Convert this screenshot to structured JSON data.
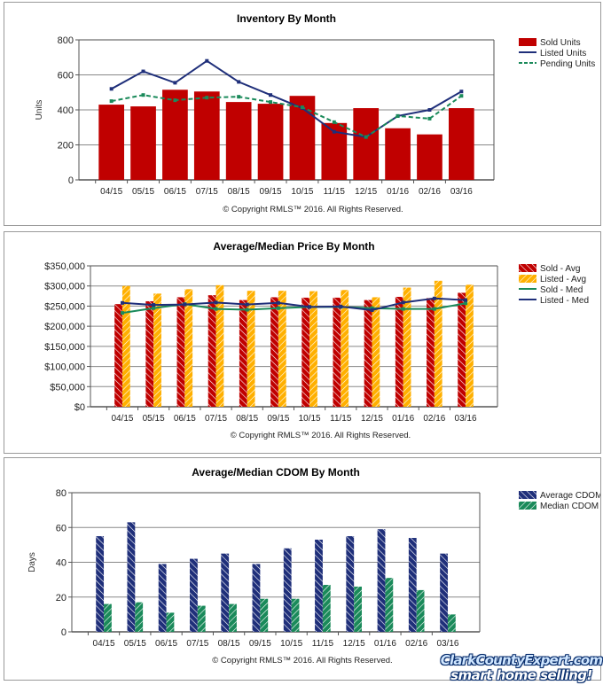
{
  "chart_data": [
    {
      "type": "bar+line",
      "title": "Inventory By Month",
      "ylabel": "Units",
      "ylim": [
        0,
        800
      ],
      "yticks": [
        "0",
        "200",
        "400",
        "600",
        "800"
      ],
      "grid": true,
      "legend": "right",
      "categories": [
        "04/15",
        "05/15",
        "06/15",
        "07/15",
        "08/15",
        "09/15",
        "10/15",
        "11/15",
        "12/15",
        "01/16",
        "02/16",
        "03/16"
      ],
      "series": [
        {
          "name": "Sold Units",
          "kind": "bar",
          "color": "#c00000",
          "values": [
            430,
            420,
            515,
            505,
            445,
            435,
            480,
            325,
            410,
            295,
            260,
            410
          ]
        },
        {
          "name": "Listed Units",
          "kind": "line",
          "color": "#1f2f7a",
          "values": [
            520,
            620,
            555,
            680,
            560,
            485,
            410,
            275,
            245,
            365,
            400,
            505
          ]
        },
        {
          "name": "Pending Units",
          "kind": "dashed-line",
          "color": "#1a8a5a",
          "values": [
            450,
            485,
            455,
            470,
            475,
            445,
            415,
            330,
            245,
            365,
            350,
            480
          ]
        }
      ],
      "footer": "© Copyright RMLS™ 2016. All Rights Reserved."
    },
    {
      "type": "bar+line",
      "title": "Average/Median Price By Month",
      "ylabel": "",
      "ylim": [
        0,
        350000
      ],
      "yticks": [
        "$0",
        "$50,000",
        "$100,000",
        "$150,000",
        "$200,000",
        "$250,000",
        "$300,000",
        "$350,000"
      ],
      "grid": true,
      "legend": "right",
      "categories": [
        "04/15",
        "05/15",
        "06/15",
        "07/15",
        "08/15",
        "09/15",
        "10/15",
        "11/15",
        "12/15",
        "01/16",
        "02/16",
        "03/16"
      ],
      "series": [
        {
          "name": "Sold - Avg",
          "kind": "hatched-bar",
          "color": "#c00000",
          "values": [
            255000,
            262000,
            272000,
            277000,
            265000,
            272000,
            271000,
            271000,
            265000,
            273000,
            270000,
            283000
          ]
        },
        {
          "name": "Listed - Avg",
          "kind": "hatched-bar",
          "color": "#ffb000",
          "values": [
            300000,
            281000,
            292000,
            302000,
            288000,
            288000,
            287000,
            290000,
            272000,
            296000,
            313000,
            303000
          ]
        },
        {
          "name": "Sold - Med",
          "kind": "line",
          "color": "#1a8a5a",
          "values": [
            233000,
            245000,
            255000,
            243000,
            241000,
            245000,
            248000,
            248000,
            245000,
            243000,
            243000,
            257000
          ]
        },
        {
          "name": "Listed - Med",
          "kind": "line",
          "color": "#1f2f7a",
          "values": [
            258000,
            253000,
            254000,
            259000,
            254000,
            258000,
            248000,
            249000,
            240000,
            259000,
            269000,
            265000
          ]
        }
      ],
      "footer": "© Copyright RMLS™ 2016. All Rights Reserved."
    },
    {
      "type": "bar",
      "title": "Average/Median CDOM By Month",
      "ylabel": "Days",
      "ylim": [
        0,
        80
      ],
      "yticks": [
        "0",
        "20",
        "40",
        "60",
        "80"
      ],
      "grid": true,
      "legend": "right",
      "categories": [
        "04/15",
        "05/15",
        "06/15",
        "07/15",
        "08/15",
        "09/15",
        "10/15",
        "11/15",
        "12/15",
        "01/16",
        "02/16",
        "03/16"
      ],
      "series": [
        {
          "name": "Average CDOM",
          "kind": "hatched-bar",
          "color": "#1f2f7a",
          "values": [
            55,
            63,
            39,
            42,
            45,
            39,
            48,
            53,
            55,
            59,
            54,
            45
          ]
        },
        {
          "name": "Median CDOM",
          "kind": "hatched-bar",
          "color": "#1a8a5a",
          "values": [
            16,
            17,
            11,
            15,
            16,
            19,
            19,
            27,
            26,
            31,
            24,
            10
          ]
        }
      ],
      "footer": "© Copyright RMLS™ 2016. All Rights Reserved."
    }
  ],
  "logo": {
    "line1": "ClarkCountyExpert.com",
    "line2": "smart home selling!"
  }
}
